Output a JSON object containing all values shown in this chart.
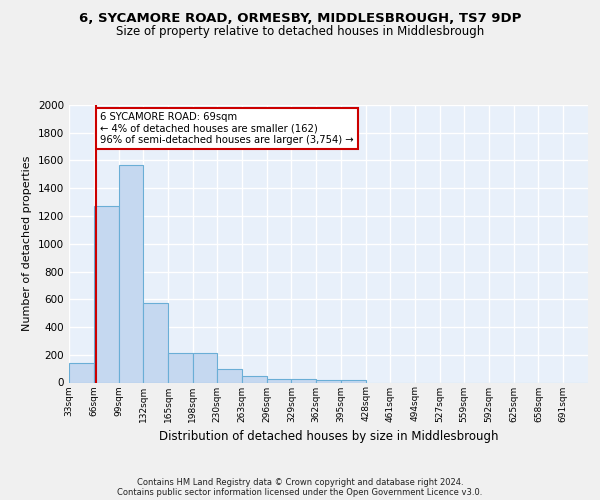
{
  "title1": "6, SYCAMORE ROAD, ORMESBY, MIDDLESBROUGH, TS7 9DP",
  "title2": "Size of property relative to detached houses in Middlesbrough",
  "xlabel": "Distribution of detached houses by size in Middlesbrough",
  "ylabel": "Number of detached properties",
  "bin_labels": [
    "33sqm",
    "66sqm",
    "99sqm",
    "132sqm",
    "165sqm",
    "198sqm",
    "230sqm",
    "263sqm",
    "296sqm",
    "329sqm",
    "362sqm",
    "395sqm",
    "428sqm",
    "461sqm",
    "494sqm",
    "527sqm",
    "559sqm",
    "592sqm",
    "625sqm",
    "658sqm",
    "691sqm"
  ],
  "bin_edges": [
    33,
    66,
    99,
    132,
    165,
    198,
    230,
    263,
    296,
    329,
    362,
    395,
    428,
    461,
    494,
    527,
    559,
    592,
    625,
    658,
    691,
    724
  ],
  "bar_heights": [
    140,
    1270,
    1570,
    570,
    215,
    215,
    100,
    50,
    28,
    25,
    20,
    20,
    0,
    0,
    0,
    0,
    0,
    0,
    0,
    0,
    0
  ],
  "bar_color": "#c5d8f0",
  "bar_edge_color": "#6aaed6",
  "property_line_x": 69,
  "annotation_text": "6 SYCAMORE ROAD: 69sqm\n← 4% of detached houses are smaller (162)\n96% of semi-detached houses are larger (3,754) →",
  "annotation_box_color": "#ffffff",
  "annotation_border_color": "#cc0000",
  "vline_color": "#cc0000",
  "ylim": [
    0,
    2000
  ],
  "yticks": [
    0,
    200,
    400,
    600,
    800,
    1000,
    1200,
    1400,
    1600,
    1800,
    2000
  ],
  "footer_text": "Contains HM Land Registry data © Crown copyright and database right 2024.\nContains public sector information licensed under the Open Government Licence v3.0.",
  "bg_color": "#e8f0fa",
  "grid_color": "#ffffff",
  "fig_bg_color": "#f0f0f0"
}
